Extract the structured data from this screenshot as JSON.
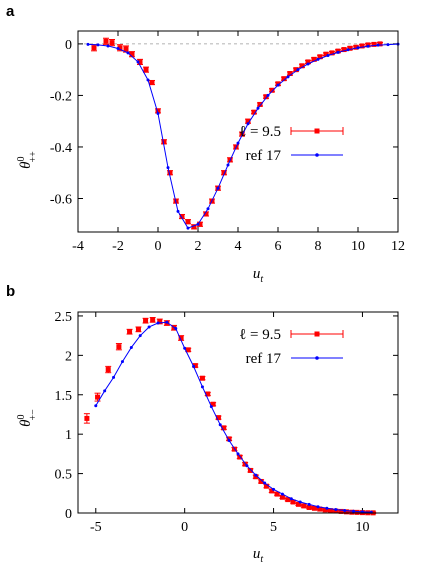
{
  "chart_data": [
    {
      "panel_label": "a",
      "type": "line",
      "xlabel": "u",
      "xlabel_sub": "t",
      "ylabel": "θ",
      "ylabel_sup": "0",
      "ylabel_sub": "++",
      "xlim": [
        -4,
        12
      ],
      "ylim": [
        -0.73,
        0.05
      ],
      "xticks": [
        -4,
        -2,
        0,
        2,
        4,
        6,
        8,
        10,
        12
      ],
      "xtick_labels": [
        "-4",
        "-2",
        "0",
        "2",
        "4",
        "6",
        "8",
        "10",
        "12"
      ],
      "yticks": [
        0,
        -0.2,
        -0.4,
        -0.6
      ],
      "ytick_labels": [
        "0",
        "-0.2",
        "-0.4",
        "-0.6"
      ],
      "zero_line": true,
      "legend_position": "right",
      "series": [
        {
          "name": "ℓ = 9.5",
          "style": "points-errorbars",
          "color": "#ff0000",
          "x": [
            -3.2,
            -2.6,
            -2.3,
            -1.9,
            -1.6,
            -1.3,
            -0.9,
            -0.6,
            -0.3,
            0.0,
            0.3,
            0.6,
            0.9,
            1.2,
            1.5,
            1.8,
            2.1,
            2.4,
            2.7,
            3.0,
            3.3,
            3.6,
            3.9,
            4.2,
            4.5,
            4.8,
            5.1,
            5.4,
            5.7,
            6.0,
            6.3,
            6.6,
            6.9,
            7.2,
            7.5,
            7.8,
            8.1,
            8.4,
            8.7,
            9.0,
            9.3,
            9.6,
            9.9,
            10.2,
            10.5,
            10.8,
            11.1
          ],
          "y": [
            -0.015,
            0.01,
            0.005,
            -0.015,
            -0.02,
            -0.04,
            -0.07,
            -0.1,
            -0.15,
            -0.26,
            -0.38,
            -0.5,
            -0.61,
            -0.67,
            -0.69,
            -0.71,
            -0.7,
            -0.66,
            -0.61,
            -0.56,
            -0.5,
            -0.45,
            -0.4,
            -0.35,
            -0.3,
            -0.265,
            -0.235,
            -0.205,
            -0.18,
            -0.155,
            -0.135,
            -0.115,
            -0.1,
            -0.085,
            -0.07,
            -0.06,
            -0.05,
            -0.04,
            -0.035,
            -0.028,
            -0.022,
            -0.017,
            -0.013,
            -0.008,
            -0.004,
            -0.002,
            0.0
          ],
          "yerr": [
            0.012,
            0.012,
            0.012,
            0.012,
            0.012,
            0.01,
            0.01,
            0.01,
            0.008,
            0.008,
            0.008,
            0.008,
            0.008,
            0.008,
            0.008,
            0.008,
            0.008,
            0.008,
            0.008,
            0.008,
            0.008,
            0.008,
            0.008,
            0.008,
            0.008,
            0.006,
            0.006,
            0.006,
            0.006,
            0.006,
            0.006,
            0.006,
            0.006,
            0.006,
            0.006,
            0.006,
            0.006,
            0.005,
            0.005,
            0.005,
            0.005,
            0.005,
            0.005,
            0.005,
            0.005,
            0.005,
            0.005
          ]
        },
        {
          "name": "ref 17",
          "style": "line-points",
          "color": "#0000ff",
          "x": [
            -3.5,
            -3.0,
            -2.5,
            -2.0,
            -1.5,
            -1.0,
            -0.5,
            0.0,
            0.5,
            1.0,
            1.5,
            2.0,
            2.5,
            3.0,
            3.5,
            4.0,
            4.5,
            5.0,
            5.5,
            6.0,
            6.5,
            7.0,
            7.5,
            8.0,
            8.5,
            9.0,
            9.5,
            10.0,
            10.5,
            11.0,
            11.5,
            12.0
          ],
          "y": [
            -0.002,
            -0.004,
            -0.008,
            -0.018,
            -0.035,
            -0.07,
            -0.14,
            -0.27,
            -0.48,
            -0.65,
            -0.715,
            -0.7,
            -0.64,
            -0.56,
            -0.47,
            -0.385,
            -0.31,
            -0.25,
            -0.2,
            -0.16,
            -0.128,
            -0.1,
            -0.078,
            -0.06,
            -0.045,
            -0.033,
            -0.023,
            -0.015,
            -0.009,
            -0.005,
            -0.003,
            -0.001
          ]
        }
      ]
    },
    {
      "panel_label": "b",
      "type": "line",
      "xlabel": "u",
      "xlabel_sub": "t",
      "ylabel": "θ",
      "ylabel_sup": "0",
      "ylabel_sub": "+−",
      "xlim": [
        -6,
        12
      ],
      "ylim": [
        0,
        2.55
      ],
      "xticks": [
        -5,
        0,
        5,
        10
      ],
      "xtick_labels": [
        "-5",
        "0",
        "5",
        "10"
      ],
      "yticks": [
        0,
        0.5,
        1,
        1.5,
        2,
        2.5
      ],
      "ytick_labels": [
        "0",
        "0.5",
        "1",
        "1.5",
        "2",
        "2.5"
      ],
      "zero_line": false,
      "legend_position": "top-right",
      "series": [
        {
          "name": "ℓ = 9.5",
          "style": "points-errorbars",
          "color": "#ff0000",
          "x": [
            -5.5,
            -4.9,
            -4.3,
            -3.7,
            -3.1,
            -2.6,
            -2.2,
            -1.8,
            -1.4,
            -1.0,
            -0.6,
            -0.2,
            0.2,
            0.6,
            1.0,
            1.3,
            1.6,
            1.9,
            2.2,
            2.5,
            2.8,
            3.1,
            3.4,
            3.7,
            4.0,
            4.3,
            4.6,
            4.9,
            5.2,
            5.5,
            5.8,
            6.1,
            6.4,
            6.7,
            7.0,
            7.3,
            7.6,
            7.9,
            8.2,
            8.5,
            8.8,
            9.1,
            9.4,
            9.7,
            10.0,
            10.3,
            10.6
          ],
          "y": [
            1.2,
            1.47,
            1.82,
            2.11,
            2.3,
            2.33,
            2.44,
            2.45,
            2.43,
            2.41,
            2.35,
            2.22,
            2.07,
            1.87,
            1.71,
            1.51,
            1.38,
            1.21,
            1.08,
            0.94,
            0.81,
            0.71,
            0.62,
            0.54,
            0.46,
            0.4,
            0.34,
            0.28,
            0.24,
            0.2,
            0.17,
            0.14,
            0.11,
            0.09,
            0.07,
            0.06,
            0.05,
            0.04,
            0.03,
            0.025,
            0.02,
            0.015,
            0.01,
            0.008,
            0.005,
            0.003,
            0.002
          ],
          "yerr": [
            0.06,
            0.05,
            0.04,
            0.04,
            0.03,
            0.03,
            0.03,
            0.03,
            0.03,
            0.03,
            0.03,
            0.03,
            0.02,
            0.02,
            0.02,
            0.02,
            0.02,
            0.02,
            0.02,
            0.02,
            0.02,
            0.02,
            0.02,
            0.02,
            0.02,
            0.02,
            0.02,
            0.02,
            0.015,
            0.015,
            0.015,
            0.015,
            0.015,
            0.015,
            0.01,
            0.01,
            0.01,
            0.01,
            0.01,
            0.01,
            0.01,
            0.01,
            0.01,
            0.01,
            0.01,
            0.01,
            0.01
          ]
        },
        {
          "name": "ref 17",
          "style": "line-points",
          "color": "#0000ff",
          "x": [
            -5.0,
            -4.5,
            -4.0,
            -3.5,
            -3.0,
            -2.5,
            -2.0,
            -1.5,
            -1.0,
            -0.5,
            0.0,
            0.5,
            1.0,
            1.5,
            2.0,
            2.5,
            3.0,
            3.5,
            4.0,
            4.5,
            5.0,
            5.5,
            6.0,
            6.5,
            7.0,
            7.5,
            8.0,
            8.5,
            9.0,
            9.5,
            10.0,
            10.5
          ],
          "y": [
            1.36,
            1.55,
            1.72,
            1.92,
            2.1,
            2.25,
            2.36,
            2.41,
            2.42,
            2.34,
            2.09,
            1.86,
            1.6,
            1.35,
            1.12,
            0.92,
            0.75,
            0.6,
            0.48,
            0.38,
            0.3,
            0.24,
            0.18,
            0.14,
            0.11,
            0.08,
            0.06,
            0.045,
            0.032,
            0.022,
            0.015,
            0.01
          ]
        }
      ]
    }
  ]
}
